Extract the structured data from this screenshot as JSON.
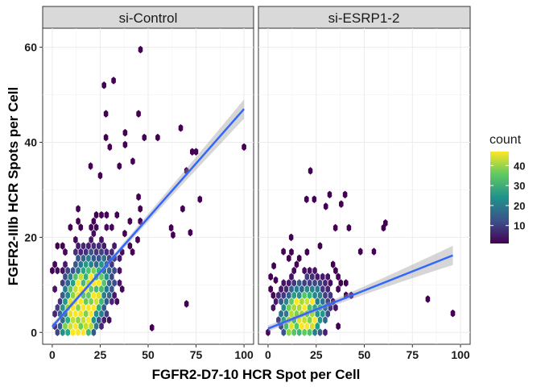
{
  "chart_data": {
    "type": "hexbin-facet",
    "xlabel": "FGFR2-D7-10 HCR Spot per Cell",
    "ylabel": "FGFR2-IIIb HCR Spots per Cell",
    "xlim": [
      -5,
      105
    ],
    "ylim": [
      -2.5,
      64
    ],
    "x_ticks": [
      "0",
      "25",
      "50",
      "75",
      "100"
    ],
    "y_ticks": [
      "0",
      "20",
      "40",
      "60"
    ],
    "panels": [
      {
        "title": "si-Control",
        "fit_line": {
          "x": [
            0,
            100
          ],
          "y": [
            1.2,
            47
          ]
        },
        "outliers": [
          [
            46,
            59.5
          ],
          [
            27,
            52
          ],
          [
            32,
            53
          ],
          [
            28,
            46
          ],
          [
            45,
            46
          ],
          [
            38,
            42
          ],
          [
            48,
            41
          ],
          [
            28,
            41
          ],
          [
            38,
            39.5
          ],
          [
            30,
            39
          ],
          [
            55,
            41
          ],
          [
            67,
            43
          ],
          [
            75,
            38
          ],
          [
            73,
            38
          ],
          [
            100,
            39
          ],
          [
            70,
            34
          ],
          [
            77,
            28
          ],
          [
            68,
            26
          ],
          [
            62,
            22
          ],
          [
            72,
            21
          ],
          [
            70,
            6
          ],
          [
            52,
            1
          ],
          [
            63,
            20.5
          ],
          [
            45,
            28.5
          ],
          [
            35,
            35
          ],
          [
            25,
            33
          ],
          [
            20,
            35
          ],
          [
            42,
            36
          ]
        ]
      },
      {
        "title": "si-ESRP1-2",
        "fit_line": {
          "x": [
            0,
            96
          ],
          "y": [
            0.8,
            16.2
          ]
        },
        "outliers": [
          [
            22,
            34
          ],
          [
            32,
            29
          ],
          [
            40,
            29
          ],
          [
            30,
            26.5
          ],
          [
            38,
            27
          ],
          [
            42,
            22
          ],
          [
            35,
            22
          ],
          [
            20,
            28
          ],
          [
            24,
            28
          ],
          [
            61,
            23
          ],
          [
            60,
            22
          ],
          [
            83,
            7
          ],
          [
            96,
            4
          ],
          [
            55,
            17
          ],
          [
            48,
            17
          ],
          [
            4,
            11
          ],
          [
            3,
            14
          ],
          [
            12,
            20
          ],
          [
            8,
            17
          ]
        ]
      }
    ],
    "legend": {
      "title": "count",
      "ticks": [
        "10",
        "20",
        "30",
        "40"
      ],
      "range": [
        1,
        47
      ],
      "palette": "viridis"
    }
  }
}
